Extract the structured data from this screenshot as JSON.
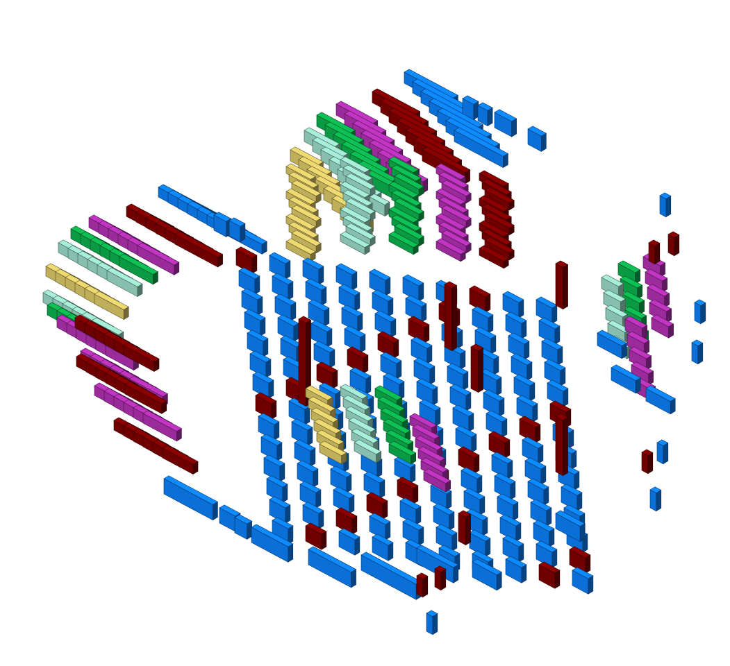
{
  "scene": {
    "kind": "isometric-voxel-render",
    "background": "#ffffff",
    "palette": {
      "blue": "#0a6fd6",
      "maroon": "#700000",
      "magenta": "#9b2a9b",
      "green": "#0a9a44",
      "mint": "#86bfae",
      "yellow": "#bfae5a"
    }
  }
}
